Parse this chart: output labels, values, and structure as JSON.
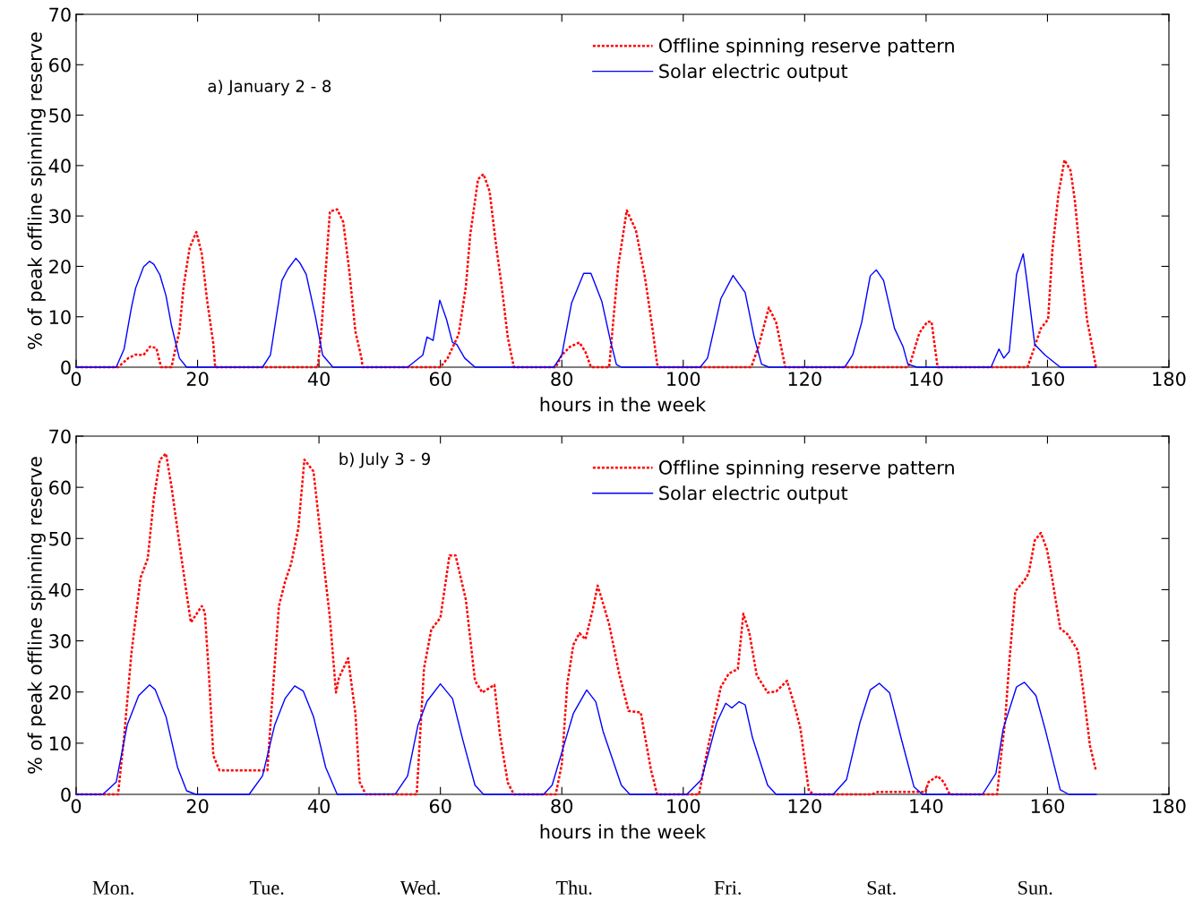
{
  "chart_data": [
    {
      "type": "line",
      "xlabel": "hours in the week",
      "ylabel": "% of peak offline spinning reserve",
      "annotations": [
        "a) January 2 - 8"
      ],
      "xlim": [
        0,
        180
      ],
      "ylim": [
        0,
        70
      ],
      "xticks": [
        0,
        20,
        40,
        60,
        80,
        100,
        120,
        140,
        160,
        180
      ],
      "yticks": [
        0,
        10,
        20,
        30,
        40,
        50,
        60,
        70
      ],
      "grid": false,
      "legend": "top right",
      "marker": "none",
      "series": [
        {
          "name": "Offline spinning reserve pattern",
          "color": "#ff0000",
          "line_style": "dotted",
          "x": [
            0,
            6.9,
            8.6,
            9.8,
            11.1,
            12.2,
            13.2,
            14,
            15.7,
            17,
            17.7,
            18.7,
            19.8,
            20.7,
            21.6,
            22.6,
            22.9,
            39.8,
            40.3,
            41.1,
            41.8,
            43,
            44,
            45,
            46,
            47,
            47.2,
            60,
            61.2,
            63,
            64.2,
            64.9,
            66.2,
            67.1,
            68.1,
            69.1,
            70.1,
            71.1,
            72.1,
            79,
            80,
            81.4,
            82.9,
            83.9,
            84.8,
            87.8,
            88.5,
            89.3,
            90.7,
            92.2,
            93.7,
            95,
            95.7,
            96,
            111.2,
            112.4,
            114.1,
            115.3,
            116.8,
            137,
            137.5,
            138.9,
            140.2,
            140.9,
            141.9,
            156.7,
            157.9,
            158.9,
            160.1,
            160.8,
            161.8,
            162.8,
            163.8,
            164.5,
            165.3,
            166.5,
            168
          ],
          "values": [
            0,
            0,
            1.8,
            2.5,
            2.4,
            4.1,
            3.8,
            0,
            0,
            7.1,
            16,
            23.7,
            26.8,
            22.5,
            13,
            4.7,
            0,
            0,
            5.9,
            19,
            30.9,
            31.3,
            28.8,
            19,
            7.1,
            1.8,
            0,
            0,
            1.8,
            6.5,
            16,
            26.1,
            37.3,
            38.3,
            34.9,
            24.9,
            16,
            5.9,
            0,
            0,
            2.4,
            4.1,
            4.9,
            3,
            0,
            0,
            9.5,
            20.1,
            31.1,
            27.2,
            17.8,
            7.1,
            0.6,
            0,
            0,
            4.1,
            11.8,
            8.9,
            0,
            0,
            1.2,
            6.8,
            9,
            9,
            0,
            0,
            4.1,
            7.7,
            9.5,
            23.1,
            34.3,
            41.1,
            39,
            33.1,
            23.1,
            9.5,
            0
          ]
        },
        {
          "name": "Solar electric output",
          "color": "#0000ff",
          "line_style": "solid",
          "x": [
            0,
            6.6,
            7.9,
            9.1,
            9.8,
            11.1,
            12.1,
            12.8,
            13.8,
            14.8,
            15.7,
            17,
            18.2,
            30.7,
            32,
            33.9,
            34.9,
            36.2,
            36.9,
            37.9,
            39.4,
            40.6,
            42.3,
            54.6,
            57.1,
            57.8,
            58.8,
            59.9,
            61,
            62,
            62.7,
            64,
            65.7,
            78.7,
            80,
            81.6,
            83.6,
            84.8,
            86.6,
            88,
            89,
            89.8,
            102.8,
            104,
            106.2,
            108.2,
            110.2,
            111.7,
            112.9,
            114.1,
            126.6,
            127.9,
            129.4,
            130.8,
            131.8,
            133,
            134.8,
            136.2,
            137,
            138.5,
            150.7,
            152,
            152.8,
            153.7,
            154.9,
            156,
            156.6,
            157.9,
            159.6,
            162.1,
            168
          ],
          "values": [
            0,
            0,
            3.6,
            11.8,
            15.7,
            19.9,
            21,
            20.4,
            18.3,
            14.2,
            8.3,
            1.8,
            0,
            0,
            2.4,
            17.2,
            19.5,
            21.6,
            20.6,
            18.4,
            10.1,
            2.4,
            0,
            0,
            2.4,
            6,
            5.3,
            13.3,
            9.5,
            4.9,
            4.5,
            1.8,
            0,
            0,
            2.4,
            12.7,
            18.6,
            18.6,
            13,
            5.3,
            0.5,
            0,
            0,
            1.8,
            13.6,
            18.2,
            14.8,
            5.9,
            0.6,
            0,
            0,
            2.4,
            8.9,
            18.1,
            19.3,
            17.2,
            7.7,
            4.1,
            0.6,
            0,
            0,
            3.6,
            1.8,
            3.1,
            18.4,
            22.5,
            17.2,
            4.5,
            2.4,
            0,
            0
          ]
        }
      ]
    },
    {
      "type": "line",
      "xlabel": "hours in the week",
      "ylabel": "% of peak offline spinning reserve",
      "annotations": [
        "b) July 3 - 9",
        "Mon.",
        "Tue.",
        "Wed.",
        "Thu.",
        "Fri.",
        "Sat.",
        "Sun."
      ],
      "xlim": [
        0,
        180
      ],
      "ylim": [
        0,
        70
      ],
      "xticks": [
        0,
        20,
        40,
        60,
        80,
        100,
        120,
        140,
        160,
        180
      ],
      "yticks": [
        0,
        10,
        20,
        30,
        40,
        50,
        60,
        70
      ],
      "grid": false,
      "legend": "top right",
      "marker": "none",
      "series": [
        {
          "name": "Offline spinning reserve pattern",
          "color": "#ff0000",
          "line_style": "dotted",
          "x": [
            0,
            6.9,
            7.9,
            9.1,
            10.6,
            11.8,
            12.8,
            13.8,
            14.8,
            15.7,
            17,
            18.2,
            18.9,
            20.7,
            21.2,
            21.9,
            22.6,
            23.6,
            31.5,
            32,
            33.4,
            34.4,
            35.4,
            36.6,
            37.6,
            39.1,
            40.3,
            41.8,
            42.8,
            43.3,
            44.8,
            46,
            46.7,
            47.7,
            56.1,
            57.3,
            58.5,
            60,
            61.5,
            62.5,
            64.2,
            65.7,
            66.9,
            68.9,
            69.8,
            71.1,
            72.1,
            79,
            80,
            80.9,
            81.9,
            82.9,
            83.9,
            85.1,
            85.9,
            86.8,
            87.8,
            89.5,
            91,
            93,
            94.7,
            95.7,
            102.6,
            104,
            106.2,
            107.5,
            109,
            109.9,
            110.9,
            112.1,
            113.9,
            115.3,
            117.1,
            118.3,
            119.3,
            120.7,
            121.7,
            131.1,
            132.1,
            139.9,
            140.4,
            141.9,
            142.9,
            143.9,
            151.7,
            152.3,
            153,
            153.7,
            154.7,
            156.2,
            156.9,
            157.9,
            158.9,
            159.9,
            160.8,
            162.1,
            163.3,
            165,
            165.8,
            167,
            168
          ],
          "values": [
            0,
            0,
            11.2,
            27.5,
            42.3,
            46.1,
            57.8,
            65.4,
            66.6,
            60.2,
            49.1,
            39.2,
            33.6,
            36.8,
            35.6,
            22.8,
            7.6,
            4.7,
            4.7,
            13.5,
            36.8,
            41.5,
            45,
            52,
            65.4,
            63.1,
            50.2,
            34.5,
            19.9,
            22.8,
            26.6,
            15.8,
            2.4,
            0,
            0,
            24.6,
            32.2,
            34.5,
            46.7,
            46.7,
            38,
            22.2,
            19.9,
            21.4,
            11.7,
            2.3,
            0,
            0,
            5.9,
            21.6,
            29.2,
            31.5,
            30.3,
            36.1,
            40.8,
            37.3,
            33.2,
            23.3,
            16.3,
            16,
            4.7,
            0,
            0,
            8.8,
            21,
            23.6,
            24.5,
            35.3,
            31.5,
            23.3,
            19.9,
            20.1,
            22.2,
            17.5,
            12.9,
            0.6,
            0,
            0,
            0.5,
            0.5,
            2.4,
            3.6,
            2.4,
            0,
            0,
            7,
            14.1,
            25.7,
            39.7,
            41.8,
            43.2,
            49.6,
            51.1,
            47.9,
            42,
            32.4,
            31.3,
            28.1,
            21.1,
            9.5,
            4.5
          ]
        },
        {
          "name": "Solar electric output",
          "color": "#0000ff",
          "line_style": "solid",
          "x": [
            0,
            4.4,
            6.6,
            8.4,
            10.3,
            12.1,
            13,
            14.8,
            16.7,
            18.2,
            19.7,
            28.5,
            30.7,
            32.7,
            34.4,
            36,
            37.4,
            39.1,
            41.1,
            43,
            52.6,
            54.6,
            56.3,
            57.8,
            60,
            62,
            63.7,
            65.7,
            67.1,
            77,
            78.4,
            80,
            81.9,
            84.1,
            85.6,
            86.8,
            89.8,
            91.2,
            100.6,
            103,
            105.5,
            107,
            108,
            109.2,
            110.2,
            111.4,
            113.9,
            115.3,
            124.7,
            126.9,
            129.1,
            130.8,
            132.3,
            134,
            136,
            138,
            139.4,
            149.3,
            151.5,
            152.7,
            154.9,
            156.2,
            158.1,
            159.6,
            162.1,
            163.5,
            168
          ],
          "values": [
            0,
            0,
            2.4,
            13.5,
            19.3,
            21.4,
            20.5,
            15.2,
            5.3,
            0.7,
            0,
            0,
            3.6,
            13.5,
            18.7,
            21.2,
            20.2,
            15.2,
            5.3,
            0,
            0.1,
            3.6,
            13.5,
            18.2,
            21.6,
            18.7,
            10.6,
            1.8,
            0,
            0,
            1.8,
            8.2,
            15.8,
            20.4,
            18.1,
            12.3,
            1.8,
            0,
            0,
            2.9,
            14,
            17.8,
            16.9,
            18.1,
            17.5,
            11.1,
            1.8,
            0,
            0,
            2.9,
            14,
            20.4,
            21.7,
            19.8,
            10.5,
            1.5,
            0,
            0,
            4.1,
            12.8,
            21,
            21.9,
            19.3,
            12.8,
            0.9,
            0,
            0
          ]
        }
      ]
    }
  ]
}
